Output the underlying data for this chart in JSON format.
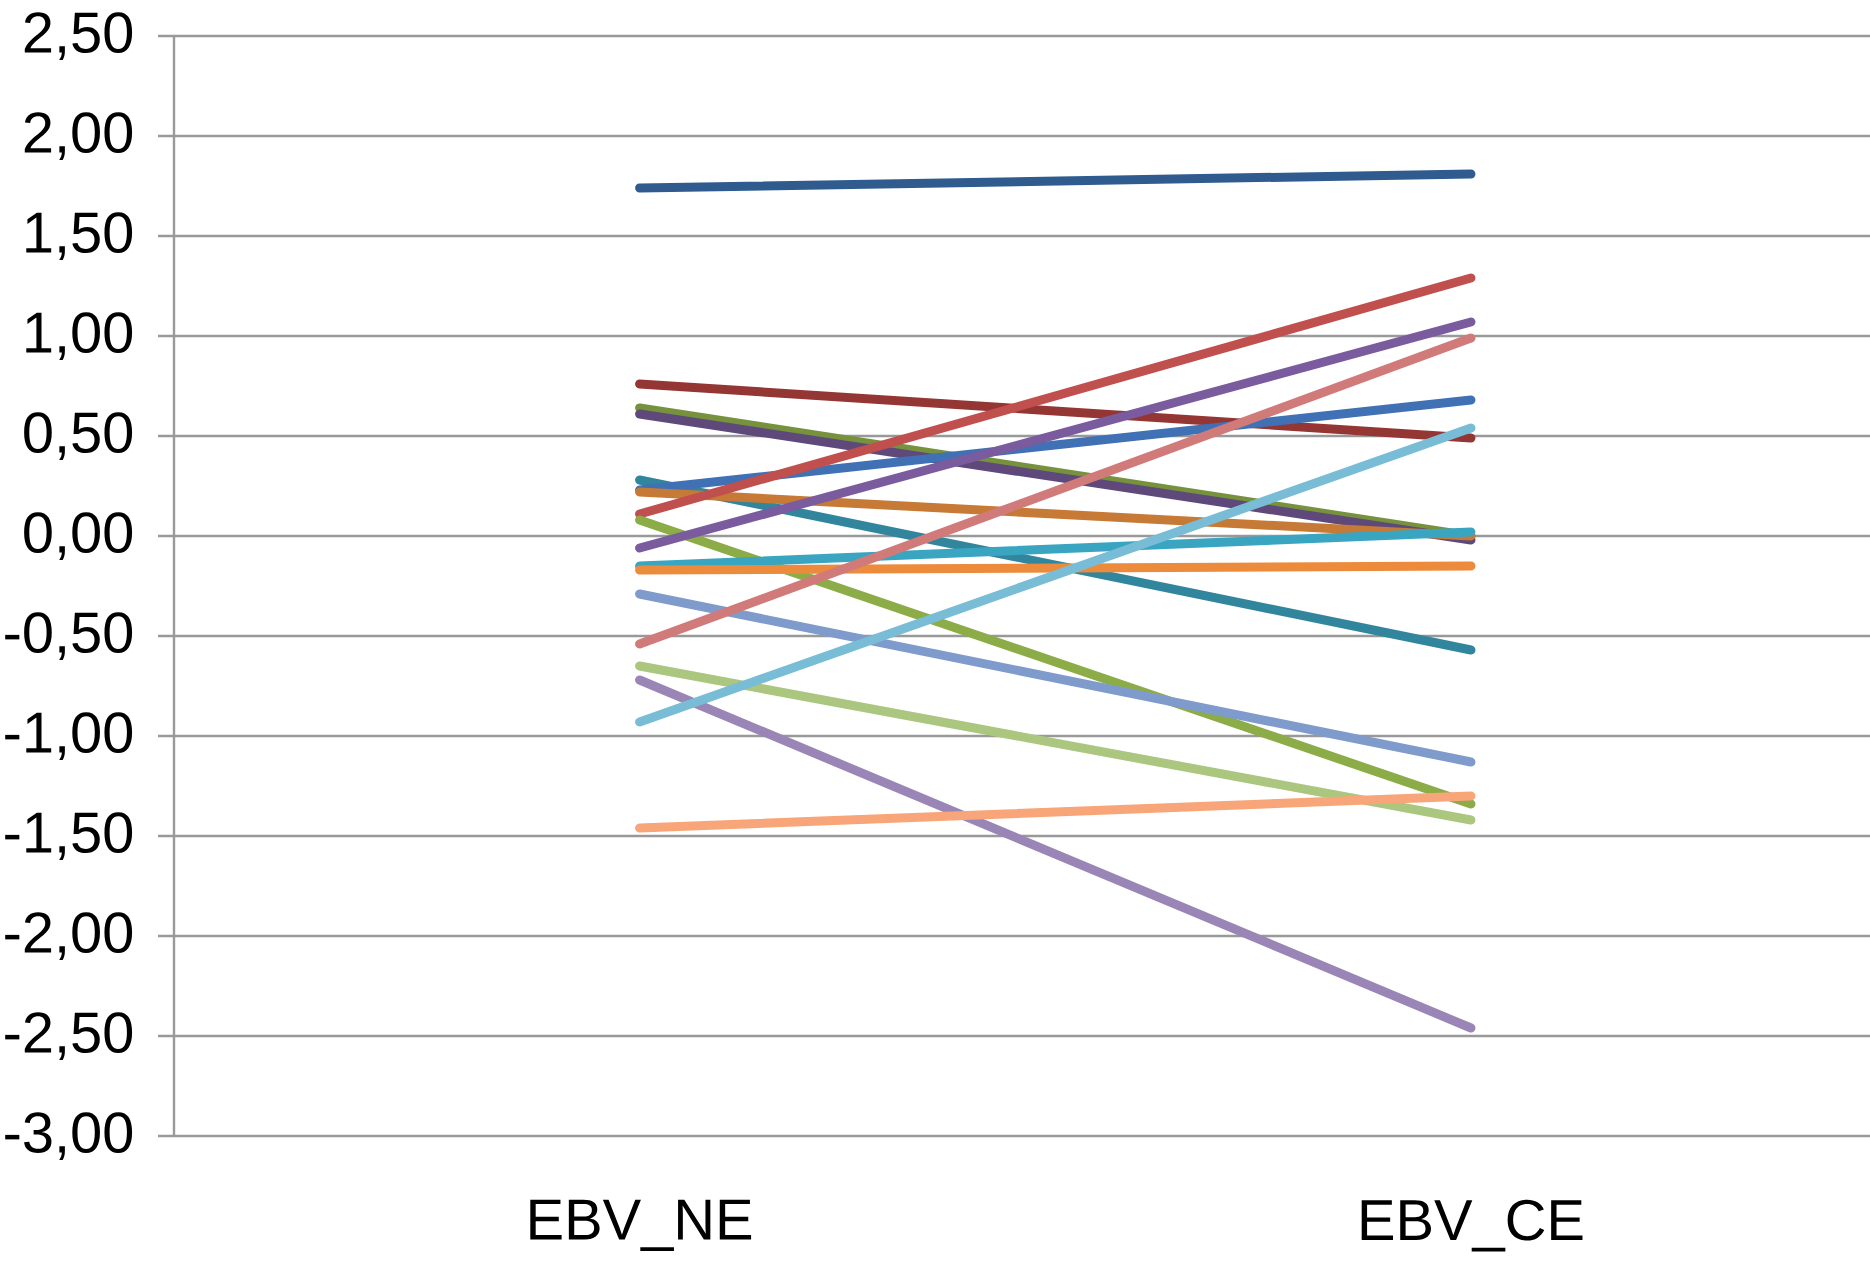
{
  "chart_data": {
    "type": "line",
    "categories": [
      "EBV_NE",
      "EBV_CE"
    ],
    "ylim": [
      -3,
      2.5
    ],
    "yticks": [
      {
        "value": -3,
        "label": "-3,00"
      },
      {
        "value": -2.5,
        "label": "-2,50"
      },
      {
        "value": -2,
        "label": "-2,00"
      },
      {
        "value": -1.5,
        "label": "-1,50"
      },
      {
        "value": -1,
        "label": "-1,00"
      },
      {
        "value": -0.5,
        "label": "-0,50"
      },
      {
        "value": 0,
        "label": "0,00"
      },
      {
        "value": 0.5,
        "label": "0,50"
      },
      {
        "value": 1,
        "label": "1,00"
      },
      {
        "value": 1.5,
        "label": "1,50"
      },
      {
        "value": 2,
        "label": "2,00"
      },
      {
        "value": 2.5,
        "label": "2,50"
      }
    ],
    "grid": "y",
    "legend": false,
    "series": [
      {
        "color": "#2f5b8f",
        "values": [
          1.74,
          1.81
        ]
      },
      {
        "color": "#943634",
        "values": [
          0.76,
          0.49
        ]
      },
      {
        "color": "#76923c",
        "values": [
          0.64,
          0.0
        ]
      },
      {
        "color": "#5f497a",
        "values": [
          0.61,
          -0.02
        ]
      },
      {
        "color": "#31859c",
        "values": [
          0.28,
          -0.57
        ]
      },
      {
        "color": "#4071b4",
        "values": [
          0.23,
          0.68
        ]
      },
      {
        "color": "#c77a35",
        "values": [
          0.22,
          0.0
        ]
      },
      {
        "color": "#c0504d",
        "values": [
          0.11,
          1.29
        ]
      },
      {
        "color": "#8cac48",
        "values": [
          0.08,
          -1.34
        ]
      },
      {
        "color": "#7a5b9e",
        "values": [
          -0.06,
          1.07
        ]
      },
      {
        "color": "#3aa5c0",
        "values": [
          -0.15,
          0.02
        ]
      },
      {
        "color": "#ec8b3c",
        "values": [
          -0.17,
          -0.15
        ]
      },
      {
        "color": "#7f9bcc",
        "values": [
          -0.29,
          -1.13
        ]
      },
      {
        "color": "#d07b7a",
        "values": [
          -0.54,
          0.99
        ]
      },
      {
        "color": "#abc67e",
        "values": [
          -0.65,
          -1.42
        ]
      },
      {
        "color": "#9a86b6",
        "values": [
          -0.72,
          -2.46
        ]
      },
      {
        "color": "#78bcd6",
        "values": [
          -0.93,
          0.54
        ]
      },
      {
        "color": "#f8a57a",
        "values": [
          -1.46,
          -1.3
        ]
      }
    ]
  }
}
